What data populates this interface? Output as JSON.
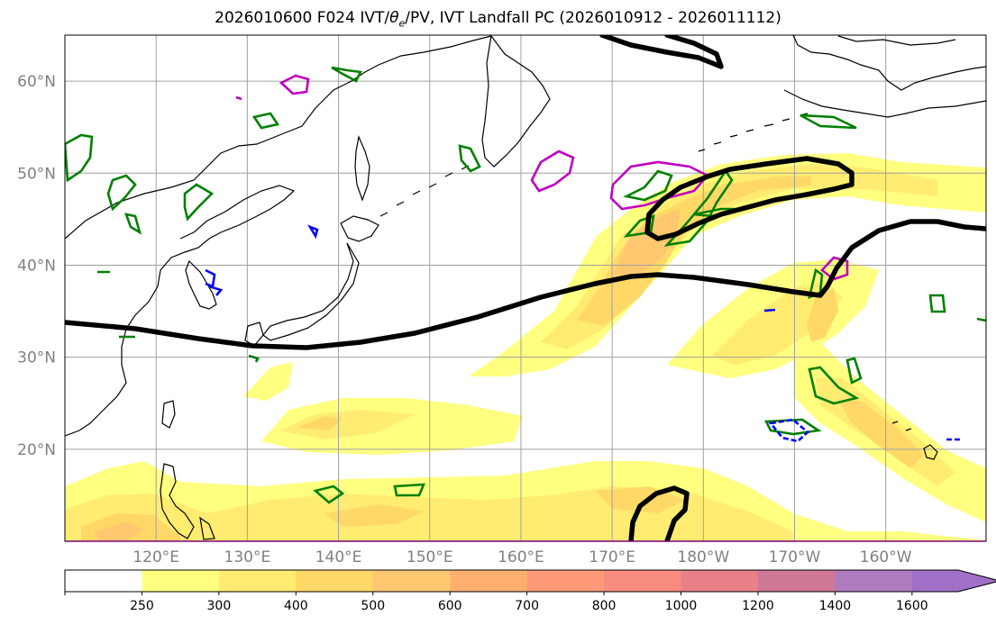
{
  "title_prefix": "2026010600 F024 IVT/",
  "title_theta": "θ",
  "title_theta_sub": "e",
  "title_suffix": "/PV, IVT Landfall PC (2026010912 - 2026011112)",
  "map": {
    "lon_range": [
      110,
      211
    ],
    "lat_range": [
      10,
      65
    ],
    "lat_ticks": [
      {
        "value": 20,
        "label": "20°N"
      },
      {
        "value": 30,
        "label": "30°N"
      },
      {
        "value": 40,
        "label": "40°N"
      },
      {
        "value": 50,
        "label": "50°N"
      },
      {
        "value": 60,
        "label": "60°N"
      }
    ],
    "lon_ticks": [
      {
        "value": 120,
        "label": "120°E"
      },
      {
        "value": 130,
        "label": "130°E"
      },
      {
        "value": 140,
        "label": "140°E"
      },
      {
        "value": 150,
        "label": "150°E"
      },
      {
        "value": 160,
        "label": "160°E"
      },
      {
        "value": 170,
        "label": "170°E"
      },
      {
        "value": 180,
        "label": "180°W"
      },
      {
        "value": 190,
        "label": "170°W"
      },
      {
        "value": 200,
        "label": "160°W"
      }
    ],
    "gridlines": true,
    "colors": {
      "coastline": "#000000",
      "gridline": "#a0a0a0",
      "pv_contour": "#000000",
      "theta_e_green": "#008000",
      "theta_e_blue": "#0000ff",
      "theta_e_magenta": "#c000c0"
    }
  },
  "colorbar": {
    "levels": [
      250,
      300,
      400,
      500,
      600,
      700,
      800,
      1000,
      1200,
      1400,
      1600
    ],
    "colors": [
      "#ffffff",
      "#ffff80",
      "#ffec70",
      "#ffd868",
      "#ffc870",
      "#ffb070",
      "#ff9a78",
      "#f88c80",
      "#e88088",
      "#d07898",
      "#b07cc0",
      "#a070c8"
    ],
    "extend": "max"
  }
}
